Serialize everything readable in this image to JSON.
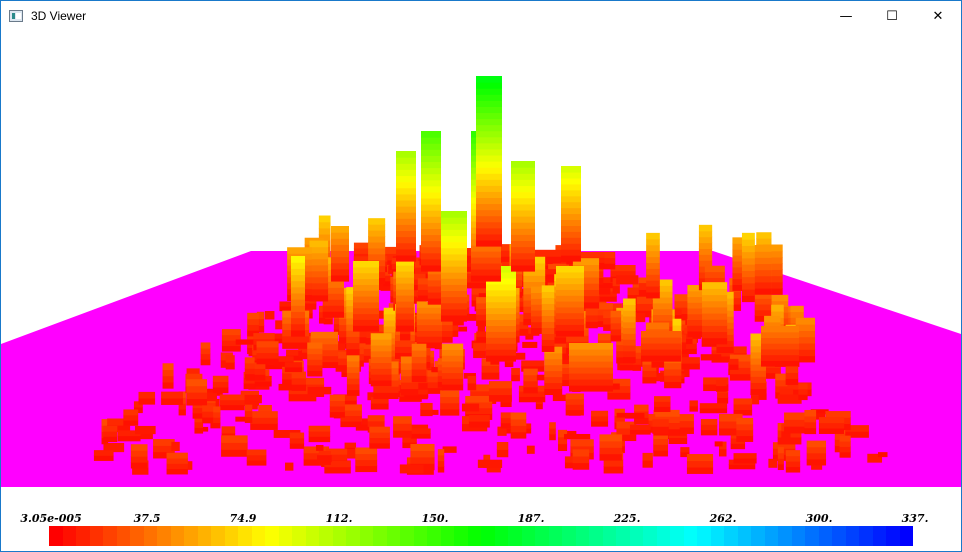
{
  "window": {
    "title": "3D Viewer",
    "minimize_glyph": "—",
    "maximize_glyph": "☐",
    "close_glyph": "✕",
    "app_icon": "viewer-window-icon"
  },
  "scene": {
    "ground_color": "#ff00ff",
    "background_color": "#ffffff"
  },
  "colorbar": {
    "labels": [
      "3.05e-005",
      "37.5",
      "74.9",
      "112.",
      "150.",
      "187.",
      "225.",
      "262.",
      "300.",
      "337."
    ],
    "colors_low_to_high": [
      "#ff0000",
      "#ffff00",
      "#00ff00",
      "#00ffff",
      "#0000ff"
    ],
    "min": "3.05e-005",
    "max": "337."
  }
}
